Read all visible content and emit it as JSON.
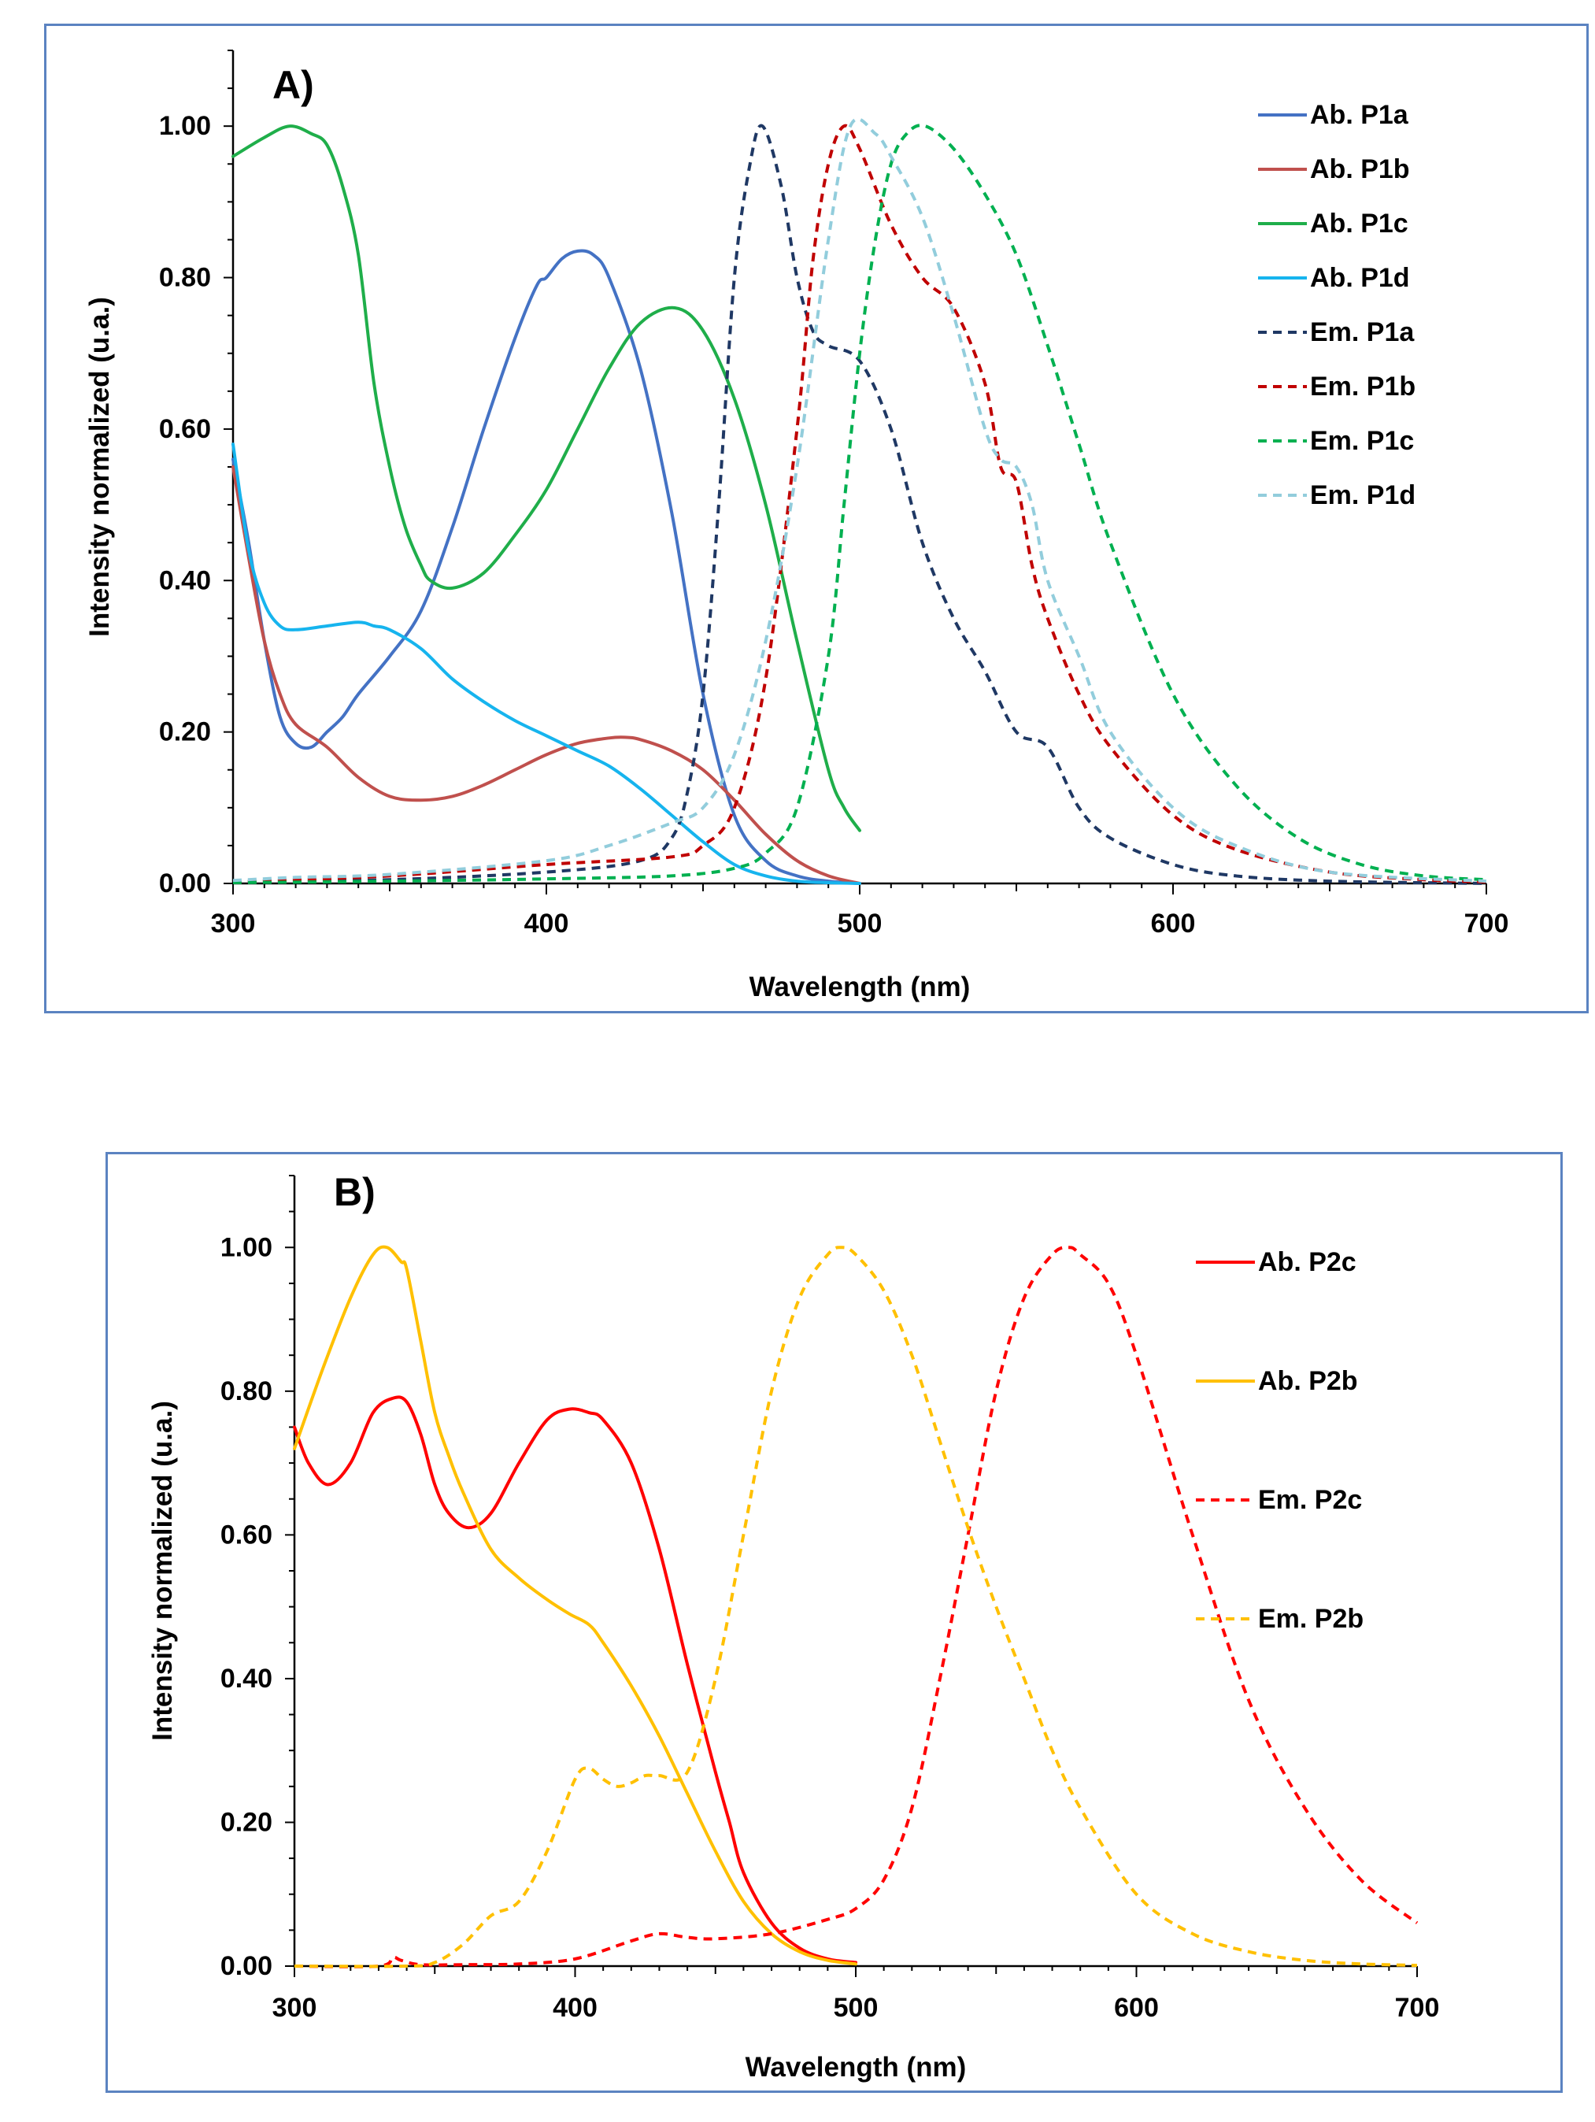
{
  "chart_data": [
    {
      "type": "line",
      "panel_label": "A)",
      "xlabel": "Wavelength (nm)",
      "ylabel": "Intensity normalized (u.a.)",
      "xlim": [
        300,
        700
      ],
      "ylim": [
        0,
        1.1
      ],
      "xticks": [
        300,
        400,
        500,
        600,
        700
      ],
      "xtick_labels": [
        "300",
        "400",
        "500",
        "600",
        "700"
      ],
      "yticks": [
        0,
        0.2,
        0.4,
        0.6,
        0.8,
        1.0
      ],
      "ytick_labels": [
        "0.00",
        "0.20",
        "0.40",
        "0.60",
        "0.80",
        "1.00"
      ],
      "legend_position": "top-right",
      "series": [
        {
          "name": "Ab. P1a",
          "color": "#4472C4",
          "dash": "solid",
          "x": [
            300,
            305,
            310,
            315,
            320,
            325,
            330,
            335,
            340,
            350,
            360,
            370,
            380,
            390,
            397,
            400,
            405,
            410,
            415,
            420,
            430,
            440,
            450,
            460,
            470,
            480,
            490,
            500
          ],
          "y": [
            0.56,
            0.45,
            0.32,
            0.22,
            0.185,
            0.18,
            0.2,
            0.22,
            0.25,
            0.3,
            0.36,
            0.47,
            0.6,
            0.72,
            0.79,
            0.8,
            0.825,
            0.835,
            0.83,
            0.8,
            0.68,
            0.49,
            0.25,
            0.09,
            0.03,
            0.01,
            0.003,
            0
          ]
        },
        {
          "name": "Ab. P1b",
          "color": "#C0504D",
          "dash": "solid",
          "x": [
            300,
            305,
            310,
            315,
            320,
            330,
            340,
            350,
            360,
            370,
            380,
            390,
            400,
            410,
            420,
            425,
            430,
            440,
            450,
            460,
            470,
            480,
            490,
            500
          ],
          "y": [
            0.55,
            0.43,
            0.32,
            0.25,
            0.21,
            0.18,
            0.14,
            0.115,
            0.11,
            0.115,
            0.13,
            0.15,
            0.17,
            0.185,
            0.192,
            0.193,
            0.19,
            0.175,
            0.15,
            0.11,
            0.065,
            0.03,
            0.01,
            0
          ]
        },
        {
          "name": "Ab. P1c",
          "color": "#1FAE4A",
          "dash": "solid",
          "x": [
            300,
            310,
            318,
            325,
            330,
            335,
            340,
            345,
            350,
            355,
            360,
            363,
            370,
            380,
            390,
            400,
            410,
            420,
            430,
            441,
            450,
            460,
            470,
            480,
            490,
            495,
            500
          ],
          "y": [
            0.96,
            0.985,
            1.0,
            0.99,
            0.975,
            0.92,
            0.83,
            0.66,
            0.55,
            0.47,
            0.42,
            0.4,
            0.39,
            0.41,
            0.46,
            0.52,
            0.6,
            0.68,
            0.74,
            0.76,
            0.73,
            0.64,
            0.5,
            0.32,
            0.15,
            0.1,
            0.07
          ]
        },
        {
          "name": "Ab. P1d",
          "color": "#16B4EE",
          "dash": "solid",
          "x": [
            300,
            305,
            310,
            315,
            320,
            330,
            340,
            345,
            350,
            360,
            370,
            380,
            390,
            400,
            410,
            420,
            430,
            440,
            450,
            460,
            470,
            480,
            490,
            500
          ],
          "y": [
            0.58,
            0.44,
            0.37,
            0.34,
            0.335,
            0.34,
            0.345,
            0.34,
            0.335,
            0.31,
            0.27,
            0.24,
            0.215,
            0.195,
            0.175,
            0.155,
            0.125,
            0.09,
            0.055,
            0.025,
            0.01,
            0.003,
            0.001,
            0
          ]
        },
        {
          "name": "Em. P1a",
          "color": "#1F3864",
          "dash": "dashed",
          "x": [
            300,
            350,
            400,
            430,
            440,
            445,
            450,
            455,
            460,
            465,
            469,
            475,
            480,
            485,
            490,
            500,
            510,
            520,
            530,
            540,
            550,
            560,
            570,
            580,
            600,
            620,
            650,
            700
          ],
          "y": [
            0.002,
            0.005,
            0.015,
            0.03,
            0.06,
            0.12,
            0.25,
            0.5,
            0.8,
            0.95,
            1.0,
            0.92,
            0.8,
            0.73,
            0.71,
            0.69,
            0.6,
            0.45,
            0.35,
            0.28,
            0.2,
            0.18,
            0.1,
            0.06,
            0.025,
            0.01,
            0.003,
            0
          ]
        },
        {
          "name": "Em. P1b",
          "color": "#C00000",
          "dash": "dashed",
          "x": [
            300,
            350,
            400,
            440,
            450,
            460,
            470,
            480,
            485,
            490,
            495,
            500,
            510,
            520,
            530,
            540,
            545,
            550,
            555,
            560,
            570,
            580,
            600,
            620,
            650,
            680,
            700
          ],
          "y": [
            0.002,
            0.01,
            0.025,
            0.035,
            0.05,
            0.1,
            0.27,
            0.6,
            0.82,
            0.95,
            1.0,
            0.97,
            0.87,
            0.8,
            0.76,
            0.66,
            0.55,
            0.53,
            0.42,
            0.35,
            0.25,
            0.18,
            0.09,
            0.045,
            0.015,
            0.005,
            0.002
          ]
        },
        {
          "name": "Em. P1c",
          "color": "#00B050",
          "dash": "dashed",
          "x": [
            300,
            350,
            400,
            440,
            460,
            470,
            480,
            490,
            495,
            500,
            505,
            510,
            515,
            521,
            530,
            540,
            550,
            560,
            570,
            580,
            600,
            620,
            640,
            660,
            680,
            700
          ],
          "y": [
            0.001,
            0.003,
            0.006,
            0.01,
            0.02,
            0.04,
            0.1,
            0.3,
            0.5,
            0.7,
            0.85,
            0.95,
            0.99,
            1.0,
            0.97,
            0.91,
            0.83,
            0.71,
            0.58,
            0.45,
            0.25,
            0.13,
            0.06,
            0.025,
            0.01,
            0.005
          ]
        },
        {
          "name": "Em. P1d",
          "color": "#92CDDC",
          "dash": "dashed",
          "x": [
            300,
            320,
            350,
            400,
            420,
            440,
            450,
            460,
            470,
            480,
            490,
            497,
            505,
            510,
            520,
            530,
            540,
            545,
            550,
            555,
            560,
            570,
            580,
            600,
            620,
            650,
            700
          ],
          "y": [
            0.004,
            0.008,
            0.012,
            0.03,
            0.05,
            0.08,
            0.1,
            0.17,
            0.32,
            0.55,
            0.85,
            1.0,
            0.99,
            0.96,
            0.88,
            0.75,
            0.6,
            0.56,
            0.55,
            0.5,
            0.4,
            0.3,
            0.2,
            0.1,
            0.05,
            0.015,
            0.003
          ]
        }
      ]
    },
    {
      "type": "line",
      "panel_label": "B)",
      "xlabel": "Wavelength (nm)",
      "ylabel": "Intensity normalized (u.a.)",
      "xlim": [
        300,
        700
      ],
      "ylim": [
        0,
        1.1
      ],
      "xticks": [
        300,
        400,
        500,
        600,
        700
      ],
      "xtick_labels": [
        "300",
        "400",
        "500",
        "600",
        "700"
      ],
      "yticks": [
        0,
        0.2,
        0.4,
        0.6,
        0.8,
        1.0
      ],
      "ytick_labels": [
        "0.00",
        "0.20",
        "0.40",
        "0.60",
        "0.80",
        "1.00"
      ],
      "legend_position": "top-right",
      "series": [
        {
          "name": "Ab. P2c",
          "color": "#FF0000",
          "dash": "solid",
          "x": [
            300,
            305,
            312,
            320,
            328,
            335,
            340,
            345,
            350,
            355,
            362,
            370,
            380,
            390,
            398,
            405,
            410,
            420,
            430,
            440,
            450,
            455,
            460,
            470,
            480,
            490,
            500
          ],
          "y": [
            0.75,
            0.7,
            0.67,
            0.7,
            0.77,
            0.79,
            0.785,
            0.74,
            0.67,
            0.63,
            0.61,
            0.63,
            0.7,
            0.76,
            0.775,
            0.77,
            0.76,
            0.7,
            0.58,
            0.42,
            0.27,
            0.2,
            0.13,
            0.06,
            0.025,
            0.01,
            0.005
          ]
        },
        {
          "name": "Ab. P2b",
          "color": "#FFC000",
          "dash": "solid",
          "x": [
            300,
            310,
            320,
            328,
            333,
            338,
            340,
            345,
            350,
            355,
            360,
            370,
            380,
            390,
            398,
            405,
            410,
            420,
            430,
            440,
            450,
            460,
            470,
            480,
            490,
            500
          ],
          "y": [
            0.72,
            0.83,
            0.93,
            0.99,
            1.0,
            0.98,
            0.97,
            0.87,
            0.77,
            0.71,
            0.66,
            0.58,
            0.54,
            0.51,
            0.49,
            0.475,
            0.45,
            0.39,
            0.32,
            0.24,
            0.16,
            0.09,
            0.045,
            0.02,
            0.008,
            0.003
          ]
        },
        {
          "name": "Em. P2c",
          "color": "#FF0000",
          "dash": "dashed",
          "x": [
            300,
            330,
            335,
            338,
            345,
            360,
            380,
            400,
            420,
            430,
            440,
            450,
            470,
            490,
            500,
            510,
            520,
            530,
            540,
            550,
            560,
            570,
            576,
            580,
            590,
            600,
            620,
            640,
            660,
            680,
            700
          ],
          "y": [
            0,
            0,
            0.012,
            0.008,
            0.002,
            0.002,
            0.003,
            0.01,
            0.035,
            0.045,
            0.04,
            0.038,
            0.045,
            0.065,
            0.08,
            0.12,
            0.22,
            0.4,
            0.6,
            0.8,
            0.93,
            0.99,
            1.0,
            0.99,
            0.95,
            0.85,
            0.6,
            0.37,
            0.22,
            0.12,
            0.06
          ]
        },
        {
          "name": "Em. P2b",
          "color": "#FFC000",
          "dash": "dashed",
          "x": [
            300,
            340,
            350,
            360,
            370,
            380,
            390,
            400,
            405,
            410,
            415,
            420,
            425,
            430,
            440,
            450,
            460,
            470,
            480,
            490,
            495,
            500,
            510,
            520,
            530,
            540,
            550,
            560,
            570,
            580,
            600,
            620,
            640,
            660,
            680,
            700
          ],
          "y": [
            0,
            0,
            0.005,
            0.03,
            0.07,
            0.09,
            0.16,
            0.26,
            0.275,
            0.26,
            0.25,
            0.255,
            0.265,
            0.265,
            0.27,
            0.4,
            0.6,
            0.8,
            0.93,
            0.99,
            1.0,
            0.99,
            0.94,
            0.85,
            0.73,
            0.61,
            0.5,
            0.4,
            0.3,
            0.22,
            0.1,
            0.045,
            0.02,
            0.008,
            0.003,
            0.001
          ]
        }
      ]
    }
  ]
}
